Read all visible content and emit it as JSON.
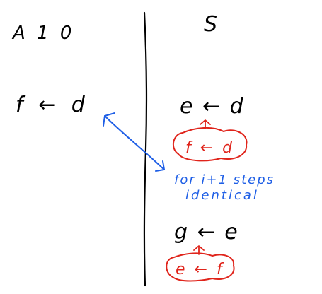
{
  "colors": {
    "ink": "#000000",
    "annotation": "#1f5fe6",
    "highlight": "#e0241b",
    "background": "#ffffff"
  },
  "left_column": {
    "heading": "A 1 0",
    "statement": "f ← d"
  },
  "right_column": {
    "heading": "S",
    "statement_1": "e ← d",
    "boxed_1": "f ← d",
    "statement_2": "g ← e",
    "boxed_2": "e ← f"
  },
  "annotation": {
    "line_1": "for i+1 steps",
    "line_2": "identical"
  }
}
